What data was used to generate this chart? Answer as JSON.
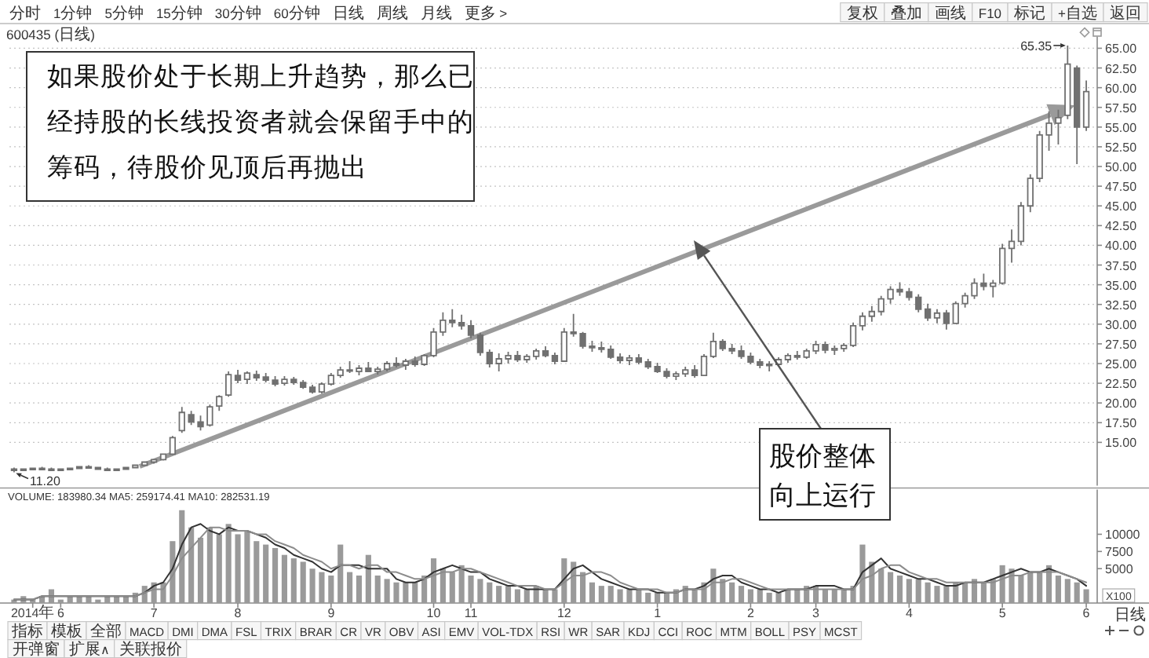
{
  "chart_data": [
    {
      "type": "other",
      "annotations": [
        "分时",
        "1分钟",
        "5分钟",
        "15分钟",
        "30分钟",
        "60分钟",
        "日线",
        "周线",
        "月线",
        "更多 >"
      ]
    },
    {
      "type": "other",
      "annotations": [
        "复权",
        "叠加",
        "画线",
        "F10",
        "标记",
        "+自选",
        "返回"
      ]
    },
    {
      "type": "candlestick",
      "title": "600435 (日线)",
      "categories": [
        null,
        null,
        null,
        null,
        null,
        null,
        null,
        null,
        null,
        null,
        null,
        null,
        null,
        null,
        null,
        null,
        null,
        null,
        null,
        null,
        null,
        null,
        null,
        null,
        null,
        null,
        null,
        null,
        null,
        null,
        null,
        null,
        null,
        null,
        null,
        null,
        null,
        null,
        null,
        null,
        null,
        null,
        null,
        null,
        null,
        null,
        null,
        null,
        null,
        null,
        null,
        null,
        null,
        null,
        null,
        null,
        null,
        null,
        null,
        null,
        null,
        null,
        null,
        null,
        null,
        null,
        null,
        null,
        null,
        null,
        null,
        null,
        null,
        null,
        null,
        null,
        null,
        null,
        null,
        null,
        null,
        null,
        null,
        null,
        null,
        null,
        null,
        null,
        null,
        null,
        null,
        null,
        null,
        null,
        null,
        null,
        null,
        null,
        null,
        null,
        null,
        null,
        null,
        null,
        null,
        null,
        null,
        null,
        null,
        null,
        null,
        null,
        null,
        null,
        null,
        null
      ],
      "ohlc": [
        [
          11.6,
          11.8,
          11.2,
          11.5
        ],
        [
          11.5,
          11.7,
          11.4,
          11.6
        ],
        [
          11.6,
          11.8,
          11.5,
          11.7
        ],
        [
          11.7,
          11.9,
          11.5,
          11.6
        ],
        [
          11.6,
          11.8,
          11.4,
          11.5
        ],
        [
          11.5,
          11.7,
          11.4,
          11.6
        ],
        [
          11.6,
          11.8,
          11.5,
          11.7
        ],
        [
          11.7,
          12.0,
          11.6,
          11.9
        ],
        [
          11.9,
          12.1,
          11.7,
          11.8
        ],
        [
          11.8,
          11.9,
          11.5,
          11.6
        ],
        [
          11.6,
          11.8,
          11.4,
          11.5
        ],
        [
          11.5,
          11.7,
          11.4,
          11.6
        ],
        [
          11.6,
          11.9,
          11.5,
          11.8
        ],
        [
          11.8,
          12.2,
          11.7,
          12.1
        ],
        [
          12.1,
          12.6,
          12.0,
          12.5
        ],
        [
          12.5,
          12.9,
          12.3,
          12.8
        ],
        [
          12.8,
          13.6,
          12.7,
          13.5
        ],
        [
          13.5,
          15.8,
          13.4,
          15.6
        ],
        [
          16.5,
          19.5,
          16.2,
          18.8
        ],
        [
          18.5,
          19.0,
          17.2,
          17.6
        ],
        [
          17.6,
          18.4,
          16.5,
          17.0
        ],
        [
          17.2,
          19.8,
          17.0,
          19.5
        ],
        [
          19.6,
          21.0,
          19.0,
          20.8
        ],
        [
          21.0,
          24.0,
          20.8,
          23.6
        ],
        [
          23.5,
          24.2,
          22.5,
          22.9
        ],
        [
          23.0,
          24.0,
          22.4,
          23.8
        ],
        [
          23.6,
          24.1,
          22.8,
          23.2
        ],
        [
          23.3,
          23.8,
          22.6,
          22.9
        ],
        [
          22.9,
          23.4,
          22.1,
          22.4
        ],
        [
          22.5,
          23.4,
          22.2,
          23.0
        ],
        [
          23.0,
          23.3,
          22.3,
          22.6
        ],
        [
          22.6,
          22.9,
          21.8,
          22.0
        ],
        [
          22.0,
          22.3,
          21.2,
          21.4
        ],
        [
          21.4,
          22.6,
          21.2,
          22.4
        ],
        [
          22.4,
          23.8,
          22.2,
          23.5
        ],
        [
          23.5,
          24.6,
          23.2,
          24.2
        ],
        [
          24.2,
          25.3,
          23.8,
          24.1
        ],
        [
          24.0,
          24.8,
          23.5,
          24.4
        ],
        [
          24.4,
          25.2,
          23.9,
          24.0
        ],
        [
          24.0,
          24.6,
          23.6,
          24.3
        ],
        [
          24.3,
          25.3,
          24.0,
          25.0
        ],
        [
          25.0,
          25.8,
          24.5,
          24.8
        ],
        [
          24.8,
          25.6,
          24.2,
          25.3
        ],
        [
          25.3,
          25.9,
          24.6,
          24.9
        ],
        [
          24.9,
          26.2,
          24.7,
          26.0
        ],
        [
          26.0,
          29.5,
          25.8,
          29.0
        ],
        [
          29.0,
          31.5,
          28.5,
          30.5
        ],
        [
          30.5,
          31.9,
          29.6,
          30.2
        ],
        [
          30.2,
          31.2,
          29.3,
          29.8
        ],
        [
          29.8,
          30.5,
          28.2,
          28.6
        ],
        [
          28.6,
          28.9,
          26.0,
          26.4
        ],
        [
          26.4,
          26.8,
          24.5,
          25.0
        ],
        [
          25.0,
          26.3,
          24.0,
          25.6
        ],
        [
          25.6,
          26.5,
          25.0,
          26.0
        ],
        [
          26.0,
          26.6,
          25.2,
          25.5
        ],
        [
          25.5,
          26.2,
          25.1,
          25.9
        ],
        [
          25.9,
          26.9,
          25.5,
          26.6
        ],
        [
          26.6,
          27.2,
          25.8,
          26.0
        ],
        [
          26.0,
          26.4,
          24.9,
          25.3
        ],
        [
          25.3,
          29.5,
          25.2,
          29.0
        ],
        [
          29.0,
          31.3,
          28.4,
          28.8
        ],
        [
          28.8,
          29.0,
          26.9,
          27.2
        ],
        [
          27.2,
          27.9,
          26.5,
          27.0
        ],
        [
          27.0,
          27.8,
          26.4,
          26.8
        ],
        [
          26.8,
          27.3,
          25.6,
          25.8
        ],
        [
          25.8,
          26.3,
          25.0,
          25.4
        ],
        [
          25.4,
          26.1,
          24.8,
          25.7
        ],
        [
          25.7,
          26.2,
          24.9,
          25.2
        ],
        [
          25.2,
          25.6,
          24.3,
          24.6
        ],
        [
          24.6,
          25.1,
          23.8,
          24.0
        ],
        [
          24.0,
          24.4,
          23.1,
          23.4
        ],
        [
          23.4,
          24.0,
          22.9,
          23.7
        ],
        [
          23.7,
          24.6,
          23.3,
          24.2
        ],
        [
          24.2,
          24.8,
          23.2,
          23.5
        ],
        [
          23.5,
          26.2,
          23.4,
          25.9
        ],
        [
          25.9,
          28.9,
          25.7,
          27.8
        ],
        [
          27.8,
          28.1,
          26.6,
          26.9
        ],
        [
          26.9,
          27.5,
          26.2,
          26.6
        ],
        [
          26.6,
          27.3,
          25.6,
          25.9
        ],
        [
          25.9,
          26.4,
          24.9,
          25.2
        ],
        [
          25.2,
          25.6,
          24.4,
          24.8
        ],
        [
          24.8,
          25.3,
          24.0,
          24.9
        ],
        [
          24.9,
          25.8,
          24.6,
          25.5
        ],
        [
          25.5,
          26.3,
          25.1,
          26.0
        ],
        [
          26.0,
          26.6,
          25.5,
          25.8
        ],
        [
          25.8,
          26.9,
          25.6,
          26.6
        ],
        [
          26.6,
          27.9,
          26.2,
          27.4
        ],
        [
          27.4,
          27.8,
          26.3,
          26.7
        ],
        [
          26.7,
          27.3,
          26.1,
          26.9
        ],
        [
          26.9,
          27.6,
          26.5,
          27.3
        ],
        [
          27.3,
          30.2,
          27.1,
          29.8
        ],
        [
          29.8,
          31.5,
          29.2,
          31.0
        ],
        [
          31.0,
          32.3,
          30.3,
          31.6
        ],
        [
          31.6,
          33.6,
          31.1,
          33.2
        ],
        [
          33.2,
          34.8,
          32.6,
          34.4
        ],
        [
          34.4,
          35.3,
          33.6,
          34.1
        ],
        [
          34.1,
          34.6,
          33.0,
          33.4
        ],
        [
          33.4,
          33.8,
          31.5,
          31.9
        ],
        [
          31.9,
          32.6,
          30.4,
          30.8
        ],
        [
          30.8,
          31.9,
          30.1,
          31.4
        ],
        [
          31.4,
          31.8,
          29.3,
          30.1
        ],
        [
          30.1,
          32.9,
          30.0,
          32.6
        ],
        [
          32.6,
          34.0,
          32.1,
          33.6
        ],
        [
          33.6,
          35.8,
          33.2,
          35.2
        ],
        [
          35.2,
          36.4,
          34.3,
          34.8
        ],
        [
          34.8,
          35.6,
          33.4,
          35.2
        ],
        [
          35.2,
          40.2,
          35.0,
          39.6
        ],
        [
          39.6,
          42.0,
          37.8,
          40.5
        ],
        [
          40.5,
          45.5,
          40.0,
          45.0
        ],
        [
          45.0,
          49.0,
          44.2,
          48.5
        ],
        [
          48.5,
          54.5,
          48.0,
          54.0
        ],
        [
          54.0,
          57.0,
          52.0,
          55.5
        ],
        [
          55.5,
          57.2,
          52.8,
          56.2
        ],
        [
          56.5,
          65.35,
          56.0,
          63.0
        ],
        [
          62.5,
          62.8,
          50.3,
          55.0
        ],
        [
          55.0,
          60.9,
          54.5,
          59.5
        ]
      ],
      "color": "#707070",
      "ylim": [
        9.5,
        66.5
      ],
      "yticks": [
        {
          "value": 15,
          "label": "15.00"
        },
        {
          "value": 17.5,
          "label": "17.50"
        },
        {
          "value": 20,
          "label": "20.00"
        },
        {
          "value": 22.5,
          "label": "22.50"
        },
        {
          "value": 25,
          "label": "25.00"
        },
        {
          "value": 27.5,
          "label": "27.50"
        },
        {
          "value": 30,
          "label": "30.00"
        },
        {
          "value": 32.5,
          "label": "32.50"
        },
        {
          "value": 35,
          "label": "35.00"
        },
        {
          "value": 37.5,
          "label": "37.50"
        },
        {
          "value": 40,
          "label": "40.00"
        },
        {
          "value": 42.5,
          "label": "42.50"
        },
        {
          "value": 45,
          "label": "45.00"
        },
        {
          "value": 47.5,
          "label": "47.50"
        },
        {
          "value": 50,
          "label": "50.00"
        },
        {
          "value": 52.5,
          "label": "52.50"
        },
        {
          "value": 55,
          "label": "55.00"
        },
        {
          "value": 57.5,
          "label": "57.50"
        },
        {
          "value": 60,
          "label": "60.00"
        },
        {
          "value": 62.5,
          "label": "62.50"
        },
        {
          "value": 65,
          "label": "65.00"
        }
      ],
      "grid": "y",
      "annotations": [
        "如果股价处于长期上升趋势，那么已经持股的长线投资者就会保留手中的筹码，待股价见顶后再抛出",
        "股价整体向上运行",
        "65.35",
        "11.20"
      ]
    },
    {
      "type": "bar",
      "title": "VOLUME: 183980.34 MA5: 259174.41 MA10: 282531.19",
      "categories": [
        null,
        null,
        "2014年",
        null,
        null,
        "6",
        null,
        null,
        null,
        null,
        null,
        null,
        null,
        null,
        null,
        "7",
        null,
        null,
        null,
        null,
        null,
        null,
        null,
        null,
        "8",
        null,
        null,
        null,
        null,
        null,
        null,
        null,
        null,
        null,
        "9",
        null,
        null,
        null,
        null,
        null,
        null,
        null,
        null,
        null,
        null,
        "10",
        null,
        null,
        null,
        "11",
        null,
        null,
        null,
        null,
        null,
        null,
        null,
        null,
        null,
        "12",
        null,
        null,
        null,
        null,
        null,
        null,
        null,
        null,
        null,
        "1",
        null,
        null,
        null,
        null,
        null,
        null,
        null,
        null,
        null,
        "2",
        null,
        null,
        null,
        null,
        null,
        null,
        "3",
        null,
        null,
        null,
        null,
        null,
        null,
        null,
        null,
        null,
        "4",
        null,
        null,
        null,
        null,
        null,
        null,
        null,
        null,
        null,
        "5",
        null,
        null,
        null,
        null,
        null,
        null,
        null,
        null,
        "6"
      ],
      "series": [
        {
          "type": "bar",
          "color": "#9a9a9a",
          "values": [
            500,
            1000,
            500,
            1000,
            2000,
            500,
            1000,
            1000,
            1000,
            500,
            1000,
            1000,
            1000,
            1500,
            2500,
            3000,
            3000,
            9000,
            13500,
            11000,
            9500,
            11000,
            10000,
            11500,
            10000,
            10500,
            9000,
            8500,
            8000,
            7000,
            6500,
            6000,
            5000,
            4500,
            4000,
            8500,
            4500,
            4000,
            7000,
            4000,
            3500,
            3000,
            3000,
            3000,
            4000,
            6500,
            5000,
            4500,
            5500,
            4000,
            3500,
            3000,
            2500,
            2500,
            2000,
            2000,
            2500,
            2000,
            2000,
            6500,
            6000,
            4500,
            3000,
            2500,
            2500,
            2000,
            2000,
            2000,
            1500,
            1500,
            1500,
            2000,
            2500,
            2000,
            3000,
            5000,
            3500,
            3000,
            2500,
            2000,
            2000,
            1500,
            1500,
            2000,
            2000,
            2500,
            2500,
            2000,
            2000,
            2000,
            2500,
            8500,
            6000,
            5000,
            4500,
            4000,
            3500,
            3500,
            3000,
            2500,
            2500,
            3000,
            3000,
            3500,
            3000,
            3500,
            5500,
            5000,
            4000,
            4500,
            4500,
            5500,
            4000,
            3500,
            3000,
            2000
          ]
        },
        {
          "type": "line",
          "color": "#333333",
          "values": [
            500,
            500,
            500,
            1000,
            1000,
            1000,
            1000,
            1000,
            1000,
            1000,
            1000,
            1000,
            1000,
            1000,
            1500,
            2500,
            3000,
            5000,
            8500,
            11000,
            11500,
            10500,
            10000,
            11000,
            10500,
            10500,
            10000,
            9500,
            8500,
            8000,
            7000,
            6500,
            6000,
            5000,
            4500,
            5500,
            5500,
            5500,
            5000,
            5000,
            5000,
            3500,
            3000,
            3000,
            3500,
            4500,
            5000,
            5500,
            5000,
            4500,
            4500,
            3500,
            3000,
            2500,
            2500,
            2000,
            2000,
            2000,
            2000,
            3500,
            5000,
            5500,
            4500,
            3500,
            3000,
            2500,
            2000,
            2000,
            2000,
            1500,
            1500,
            1500,
            2000,
            2000,
            2500,
            3500,
            4000,
            4000,
            3000,
            2500,
            2000,
            2000,
            1500,
            2000,
            2000,
            2000,
            2500,
            2500,
            2500,
            2000,
            2000,
            4500,
            5500,
            6500,
            5000,
            4500,
            4000,
            3500,
            3500,
            3000,
            2500,
            2500,
            3000,
            3000,
            3000,
            3500,
            4000,
            4500,
            5000,
            4500,
            4500,
            5000,
            4500,
            4000,
            3500,
            2500
          ]
        },
        {
          "type": "line",
          "color": "#8c8c8c",
          "values": [
            500,
            500,
            500,
            1000,
            1000,
            1000,
            1000,
            1000,
            1000,
            1000,
            1000,
            1000,
            1000,
            1000,
            1500,
            2000,
            2000,
            4000,
            6500,
            8000,
            9500,
            11000,
            11000,
            10500,
            10500,
            10500,
            10000,
            10000,
            9000,
            8500,
            8000,
            7000,
            6500,
            6000,
            5000,
            5500,
            5500,
            5000,
            5500,
            5500,
            4500,
            4500,
            4000,
            3500,
            3500,
            4000,
            4500,
            4500,
            5000,
            5000,
            4500,
            4000,
            3500,
            3000,
            2500,
            2500,
            2500,
            2000,
            2000,
            3000,
            4000,
            4000,
            4500,
            4500,
            4000,
            3000,
            2500,
            2000,
            2000,
            2000,
            1500,
            1500,
            2000,
            2000,
            2000,
            3000,
            3000,
            3500,
            3500,
            3000,
            2500,
            2000,
            2000,
            2000,
            2000,
            2000,
            2000,
            2000,
            2000,
            2000,
            2000,
            3500,
            4000,
            5000,
            5500,
            5500,
            4500,
            4000,
            3500,
            3500,
            3000,
            3000,
            3000,
            3000,
            3000,
            3000,
            3500,
            4000,
            4000,
            4500,
            4500,
            4500,
            4500,
            4000,
            3500,
            3000
          ]
        }
      ],
      "ylim": [
        0,
        16500
      ],
      "yticks": [
        5000,
        7500,
        10000
      ],
      "ylabel": "X100"
    },
    {
      "type": "other",
      "annotations": [
        "日线"
      ]
    },
    {
      "type": "other",
      "annotations": [
        "指标",
        "模板",
        "全部",
        "MACD",
        "DMI",
        "DMA",
        "FSL",
        "TRIX",
        "BRAR",
        "CR",
        "VR",
        "OBV",
        "ASI",
        "EMV",
        "VOL-TDX",
        "RSI",
        "WR",
        "SAR",
        "KDJ",
        "CCI",
        "ROC",
        "MTM",
        "BOLL",
        "PSY",
        "MCST"
      ]
    },
    {
      "type": "other",
      "annotations": [
        "开弹窗",
        "扩展∧",
        "关联报价"
      ]
    }
  ]
}
